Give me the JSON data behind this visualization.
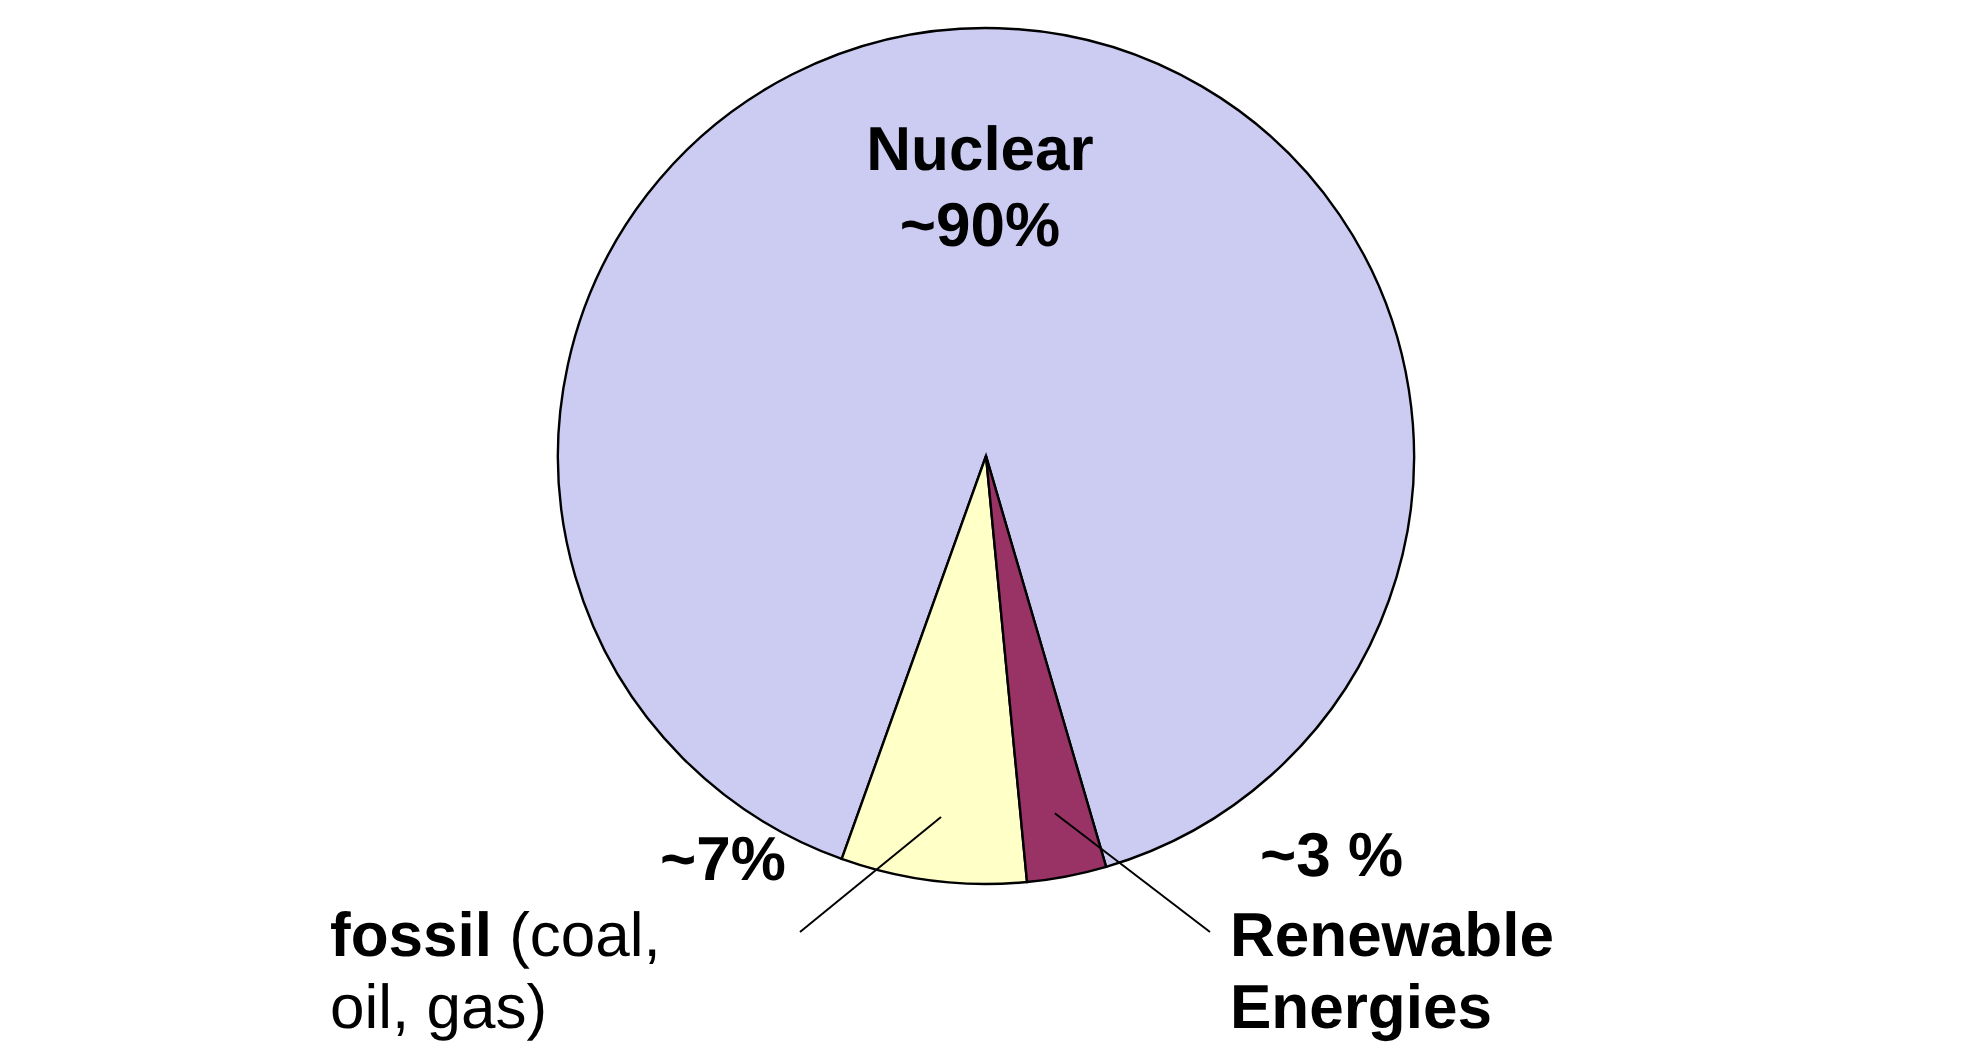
{
  "chart_data": {
    "type": "pie",
    "categories": [
      "Nuclear",
      "fossil (coal, oil, gas)",
      "Renewable Energies"
    ],
    "values": [
      90,
      7,
      3
    ],
    "value_labels": [
      "~90%",
      "~7%",
      "~3 %"
    ],
    "colors": [
      "#ccccf2",
      "#ffffc8",
      "#993366"
    ]
  }
}
